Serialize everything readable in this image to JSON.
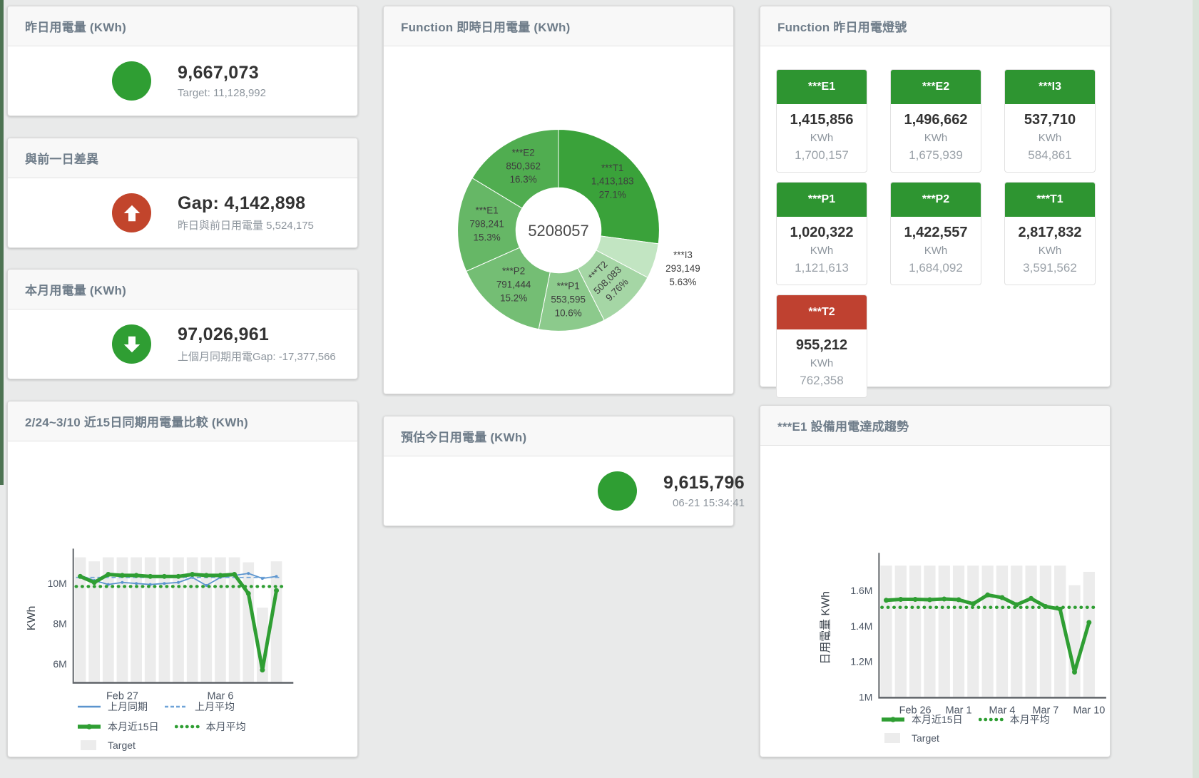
{
  "colors": {
    "green": "#2f9e33",
    "red": "#c2452c",
    "tile_green": "#2e9531",
    "tile_red": "#bf4130",
    "blue": "#5b94ce",
    "bar_gray": "#ececec"
  },
  "stat_cards": {
    "yesterday": {
      "title": "昨日用電量 (KWh)",
      "value": "9,667,073",
      "subtitle": "Target: 11,128,992",
      "indicator": "green-circle"
    },
    "gap": {
      "title": "與前一日差異",
      "value": "Gap: 4,142,898",
      "subtitle": "昨日與前日用電量 5,524,175",
      "indicator": "red-up-arrow"
    },
    "month": {
      "title": "本月用電量 (KWh)",
      "value": "97,026,961",
      "subtitle": "上個月同期用電Gap: -17,377,566",
      "indicator": "green-down-arrow"
    },
    "today_estimate": {
      "title": "預估今日用電量 (KWh)",
      "value": "9,615,796",
      "subtitle": "06-21 15:34:41",
      "indicator": "green-circle"
    }
  },
  "lights": {
    "title": "Function 昨日用電燈號",
    "tiles": [
      {
        "label": "***E1",
        "value": "1,415,856",
        "unit": "KWh",
        "target": "1,700,157",
        "status": "green"
      },
      {
        "label": "***E2",
        "value": "1,496,662",
        "unit": "KWh",
        "target": "1,675,939",
        "status": "green"
      },
      {
        "label": "***I3",
        "value": "537,710",
        "unit": "KWh",
        "target": "584,861",
        "status": "green"
      },
      {
        "label": "***P1",
        "value": "1,020,322",
        "unit": "KWh",
        "target": "1,121,613",
        "status": "green"
      },
      {
        "label": "***P2",
        "value": "1,422,557",
        "unit": "KWh",
        "target": "1,684,092",
        "status": "green"
      },
      {
        "label": "***T1",
        "value": "2,817,832",
        "unit": "KWh",
        "target": "3,591,562",
        "status": "green"
      },
      {
        "label": "***T2",
        "value": "955,212",
        "unit": "KWh",
        "target": "762,358",
        "status": "red"
      }
    ]
  },
  "chart_data": [
    {
      "id": "realtime_donut",
      "type": "pie",
      "title": "Function 即時日用電量 (KWh)",
      "center_total": "5208057",
      "slices": [
        {
          "name": "***T1",
          "value": 1413183,
          "display": "1,413,183",
          "pct": "27.1%",
          "color": "#3aa23a"
        },
        {
          "name": "***I3",
          "value": 293149,
          "display": "293,149",
          "pct": "5.63%",
          "color": "#c2e5c2",
          "label_outside": true
        },
        {
          "name": "***T2",
          "value": 508083,
          "display": "508,083",
          "pct": "9.76%",
          "color": "#a5d6a5",
          "label_rotate": -45
        },
        {
          "name": "***P1",
          "value": 553595,
          "display": "553,595",
          "pct": "10.6%",
          "color": "#8cca8c"
        },
        {
          "name": "***P2",
          "value": 791444,
          "display": "791,444",
          "pct": "15.2%",
          "color": "#74be74"
        },
        {
          "name": "***E1",
          "value": 798241,
          "display": "798,241",
          "pct": "15.3%",
          "color": "#66b766"
        },
        {
          "name": "***E2",
          "value": 850362,
          "display": "850,362",
          "pct": "16.3%",
          "color": "#50ad50"
        }
      ]
    },
    {
      "id": "compare15",
      "type": "bar-line",
      "title": "2/24~3/10 近15日同期用電量比較 (KWh)",
      "ylabel": "KWh",
      "ylim": [
        5.1,
        11.45
      ],
      "yticks": [
        {
          "v": 6,
          "label": "6M"
        },
        {
          "v": 8,
          "label": "8M"
        },
        {
          "v": 10,
          "label": "10M"
        }
      ],
      "categories": [
        "2/24",
        "2/25",
        "2/26",
        "2/27",
        "2/28",
        "3/1",
        "3/2",
        "3/3",
        "3/4",
        "3/5",
        "3/6",
        "3/7",
        "3/8",
        "3/9",
        "3/10"
      ],
      "xticks": [
        {
          "i": 3,
          "label": "Feb 27"
        },
        {
          "i": 10,
          "label": "Mar 6"
        }
      ],
      "n": 15,
      "unit": "M KWh",
      "bars": {
        "name": "Target",
        "color": "#ececec",
        "values": [
          11.3,
          11.1,
          11.3,
          11.3,
          11.3,
          11.3,
          11.3,
          11.3,
          11.3,
          11.3,
          11.3,
          11.3,
          11.05,
          8.8,
          11.1
        ]
      },
      "lines": [
        {
          "name": "上月同期",
          "color": "#5b94ce",
          "width": 1.8,
          "style": "solid",
          "marker": 2,
          "values": [
            10.4,
            10.15,
            9.95,
            10.05,
            10.0,
            9.95,
            10.0,
            10.05,
            10.3,
            9.9,
            10.3,
            10.4,
            10.5,
            10.25,
            10.35
          ]
        },
        {
          "name": "上月平均",
          "color": "#6fa3d8",
          "width": 1.8,
          "style": "dashed",
          "flat": 10.3
        },
        {
          "name": "本月近15日",
          "color": "#2f9e33",
          "width": 5,
          "style": "solid",
          "marker": 3.5,
          "values": [
            10.35,
            10.05,
            10.45,
            10.4,
            10.4,
            10.35,
            10.35,
            10.35,
            10.45,
            10.4,
            10.4,
            10.45,
            9.5,
            5.7,
            9.65
          ]
        },
        {
          "name": "本月平均",
          "color": "#2f9e33",
          "width": 4.5,
          "style": "dotted",
          "flat": 9.85
        }
      ],
      "legend": [
        [
          {
            "label": "上月同期",
            "swatch": "solid",
            "color": "#5b94ce"
          },
          {
            "label": "上月平均",
            "swatch": "dashed",
            "color": "#6fa3d8"
          }
        ],
        [
          {
            "label": "本月近15日",
            "swatch": "thick",
            "color": "#2f9e33"
          },
          {
            "label": "本月平均",
            "swatch": "dots",
            "color": "#2f9e33"
          }
        ],
        [
          {
            "label": "Target",
            "swatch": "box",
            "color": "#ececec"
          }
        ]
      ]
    },
    {
      "id": "e1_trend",
      "type": "bar-line",
      "title": "***E1 設備用電達成趨勢",
      "ylabel": "日用電量 KWh",
      "ylim": [
        1.0,
        1.78
      ],
      "yticks": [
        {
          "v": 1,
          "label": "1M"
        },
        {
          "v": 1.2,
          "label": "1.2M"
        },
        {
          "v": 1.4,
          "label": "1.4M"
        },
        {
          "v": 1.6,
          "label": "1.6M"
        }
      ],
      "categories": [
        "2/24",
        "2/25",
        "2/26",
        "2/27",
        "2/28",
        "3/1",
        "3/2",
        "3/3",
        "3/4",
        "3/5",
        "3/6",
        "3/7",
        "3/8",
        "3/9",
        "3/10"
      ],
      "xticks": [
        {
          "i": 2,
          "label": "Feb 26"
        },
        {
          "i": 5,
          "label": "Mar 1"
        },
        {
          "i": 8,
          "label": "Mar 4"
        },
        {
          "i": 11,
          "label": "Mar 7"
        },
        {
          "i": 14,
          "label": "Mar 10"
        }
      ],
      "n": 15,
      "unit": "M KWh",
      "bars": {
        "name": "Target",
        "color": "#ececec",
        "values": [
          1.74,
          1.74,
          1.74,
          1.74,
          1.74,
          1.74,
          1.74,
          1.74,
          1.74,
          1.74,
          1.74,
          1.74,
          1.74,
          1.63,
          1.705
        ]
      },
      "lines": [
        {
          "name": "本月近15日",
          "color": "#2f9e33",
          "width": 5,
          "style": "solid",
          "marker": 3.5,
          "values": [
            1.545,
            1.55,
            1.55,
            1.548,
            1.552,
            1.548,
            1.525,
            1.575,
            1.56,
            1.52,
            1.555,
            1.51,
            1.495,
            1.14,
            1.42
          ]
        },
        {
          "name": "本月平均",
          "color": "#2f9e33",
          "width": 4.5,
          "style": "dotted",
          "flat": 1.505
        }
      ],
      "legend": [
        [
          {
            "label": "本月近15日",
            "swatch": "thick",
            "color": "#2f9e33"
          },
          {
            "label": "本月平均",
            "swatch": "dots",
            "color": "#2f9e33"
          }
        ],
        [
          {
            "label": "Target",
            "swatch": "box",
            "color": "#ececec"
          }
        ]
      ]
    }
  ]
}
